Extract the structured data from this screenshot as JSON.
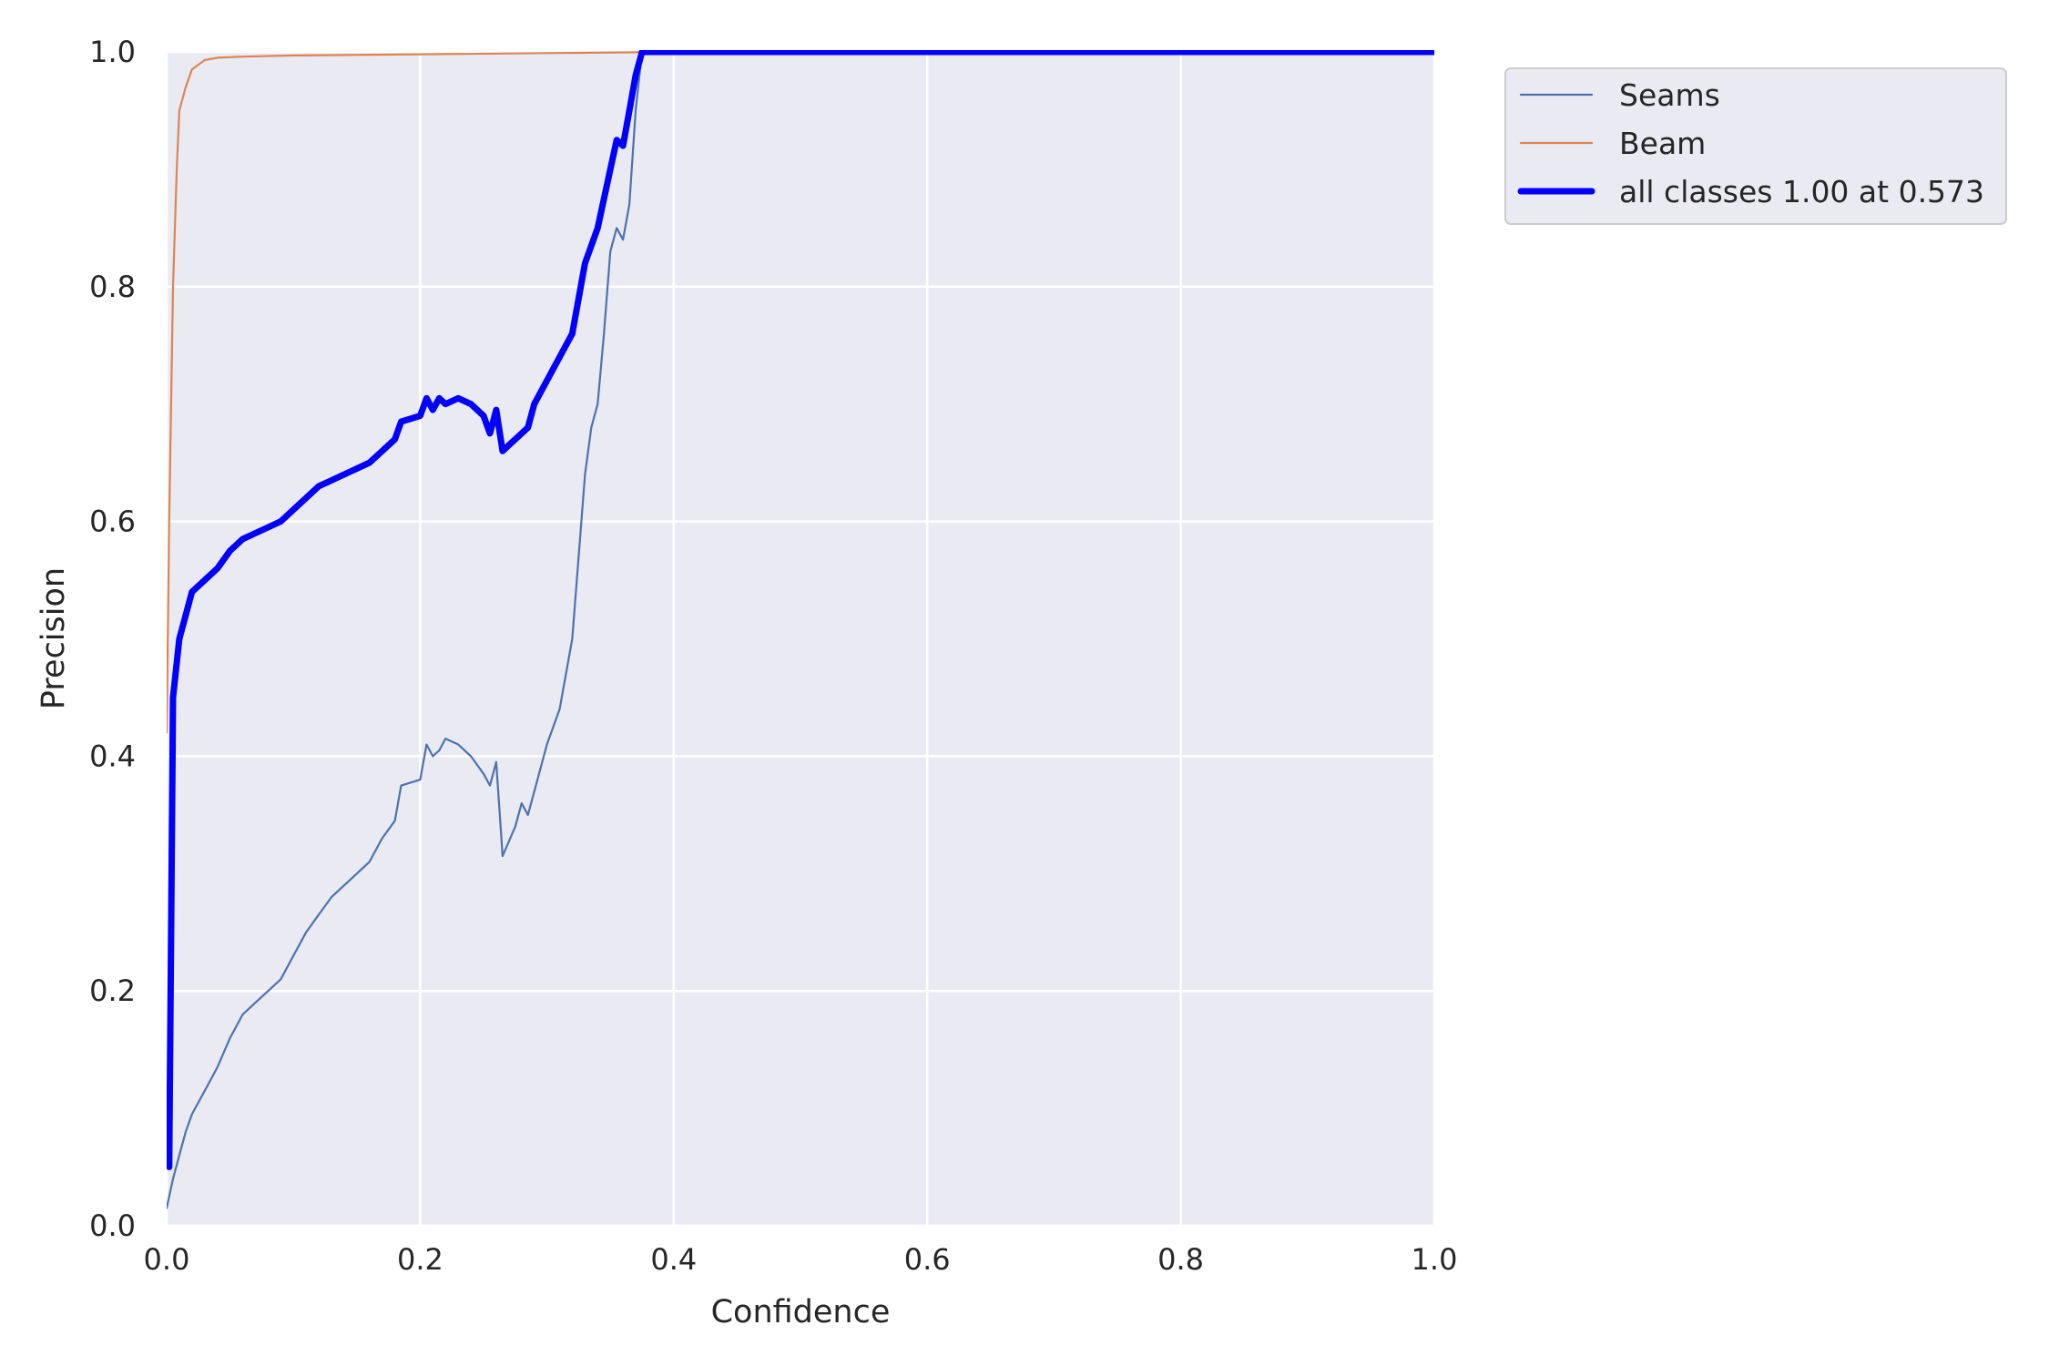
{
  "chart_data": {
    "type": "line",
    "title": "",
    "xlabel": "Confidence",
    "ylabel": "Precision",
    "xlim": [
      0,
      1
    ],
    "ylim": [
      0,
      1
    ],
    "xticks": [
      "0.0",
      "0.2",
      "0.4",
      "0.6",
      "0.8",
      "1.0"
    ],
    "yticks": [
      "0.0",
      "0.2",
      "0.4",
      "0.6",
      "0.8",
      "1.0"
    ],
    "grid": true,
    "legend_placement": "outside-upper-right",
    "background_color": "#eaeaf2",
    "series": [
      {
        "name": "Seams",
        "color": "#4c72b0",
        "linewidth": "thin",
        "x": [
          0.0,
          0.005,
          0.01,
          0.015,
          0.02,
          0.025,
          0.03,
          0.04,
          0.05,
          0.06,
          0.07,
          0.08,
          0.09,
          0.1,
          0.11,
          0.12,
          0.13,
          0.14,
          0.15,
          0.16,
          0.17,
          0.18,
          0.185,
          0.2,
          0.205,
          0.21,
          0.215,
          0.22,
          0.23,
          0.24,
          0.25,
          0.255,
          0.26,
          0.265,
          0.275,
          0.28,
          0.285,
          0.29,
          0.3,
          0.31,
          0.32,
          0.325,
          0.33,
          0.335,
          0.34,
          0.345,
          0.35,
          0.355,
          0.36,
          0.365,
          0.37,
          0.375,
          0.38,
          0.4,
          0.5,
          0.573,
          0.6,
          0.8,
          1.0
        ],
        "y": [
          0.015,
          0.04,
          0.06,
          0.08,
          0.095,
          0.105,
          0.115,
          0.135,
          0.16,
          0.18,
          0.19,
          0.2,
          0.21,
          0.23,
          0.25,
          0.265,
          0.28,
          0.29,
          0.3,
          0.31,
          0.33,
          0.345,
          0.375,
          0.38,
          0.41,
          0.4,
          0.405,
          0.415,
          0.41,
          0.4,
          0.385,
          0.375,
          0.395,
          0.315,
          0.34,
          0.36,
          0.35,
          0.37,
          0.41,
          0.44,
          0.5,
          0.57,
          0.64,
          0.68,
          0.7,
          0.76,
          0.83,
          0.85,
          0.84,
          0.87,
          0.95,
          1.0,
          1.0,
          1.0,
          1.0,
          1.0,
          1.0,
          1.0,
          1.0
        ]
      },
      {
        "name": "Beam",
        "color": "#dd8452",
        "linewidth": "thin",
        "x": [
          0.0,
          0.002,
          0.005,
          0.008,
          0.01,
          0.015,
          0.02,
          0.03,
          0.04,
          0.06,
          0.1,
          0.2,
          0.3,
          0.4,
          0.5,
          0.6,
          0.7,
          0.8,
          0.9,
          1.0
        ],
        "y": [
          0.42,
          0.6,
          0.8,
          0.9,
          0.95,
          0.97,
          0.985,
          0.993,
          0.995,
          0.996,
          0.997,
          0.998,
          0.999,
          1.0,
          1.0,
          1.0,
          1.0,
          1.0,
          1.0,
          1.0
        ]
      },
      {
        "name": "all classes 1.00 at 0.573",
        "color": "#0000ff",
        "linewidth": "thick",
        "x": [
          0.002,
          0.005,
          0.01,
          0.015,
          0.02,
          0.03,
          0.04,
          0.05,
          0.06,
          0.07,
          0.08,
          0.09,
          0.1,
          0.11,
          0.12,
          0.13,
          0.14,
          0.15,
          0.16,
          0.17,
          0.18,
          0.185,
          0.2,
          0.205,
          0.21,
          0.215,
          0.22,
          0.23,
          0.24,
          0.25,
          0.255,
          0.26,
          0.265,
          0.27,
          0.28,
          0.285,
          0.29,
          0.3,
          0.31,
          0.32,
          0.33,
          0.34,
          0.35,
          0.355,
          0.36,
          0.365,
          0.37,
          0.375,
          0.38,
          0.4,
          0.5,
          0.573,
          0.6,
          0.8,
          1.0
        ],
        "y": [
          0.05,
          0.45,
          0.5,
          0.52,
          0.54,
          0.55,
          0.56,
          0.575,
          0.585,
          0.59,
          0.595,
          0.6,
          0.61,
          0.62,
          0.63,
          0.635,
          0.64,
          0.645,
          0.65,
          0.66,
          0.67,
          0.685,
          0.69,
          0.705,
          0.695,
          0.705,
          0.7,
          0.705,
          0.7,
          0.69,
          0.675,
          0.695,
          0.66,
          0.665,
          0.675,
          0.68,
          0.7,
          0.72,
          0.74,
          0.76,
          0.82,
          0.85,
          0.9,
          0.925,
          0.92,
          0.95,
          0.98,
          1.0,
          1.0,
          1.0,
          1.0,
          1.0,
          1.0,
          1.0,
          1.0
        ]
      }
    ]
  }
}
